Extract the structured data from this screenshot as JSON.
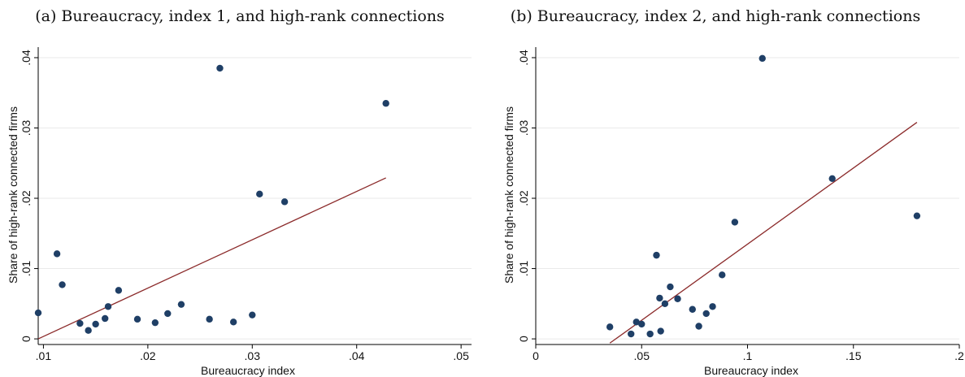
{
  "chart_data": [
    {
      "type": "scatter",
      "title": "(a) Bureaucracy, index 1, and high-rank connections",
      "xlabel": "Bureaucracy index",
      "ylabel": "Share of high-rank connected firms",
      "xlim": [
        0.0095,
        0.051
      ],
      "ylim": [
        -0.0008,
        0.0415
      ],
      "xticks": [
        ".01",
        ".02",
        ".03",
        ".04",
        ".05"
      ],
      "xtick_values": [
        0.01,
        0.02,
        0.03,
        0.04,
        0.05
      ],
      "yticks": [
        "0",
        ".01",
        ".02",
        ".03",
        ".04"
      ],
      "ytick_values": [
        0,
        0.01,
        0.02,
        0.03,
        0.04
      ],
      "grid": "horizontal",
      "series": [
        {
          "points": [
            [
              0.0095,
              0.0037
            ],
            [
              0.0113,
              0.0121
            ],
            [
              0.0118,
              0.0077
            ],
            [
              0.0135,
              0.0022
            ],
            [
              0.0143,
              0.0012
            ],
            [
              0.015,
              0.0021
            ],
            [
              0.0159,
              0.0029
            ],
            [
              0.0162,
              0.0046
            ],
            [
              0.0172,
              0.0069
            ],
            [
              0.019,
              0.0028
            ],
            [
              0.0207,
              0.0023
            ],
            [
              0.0219,
              0.0036
            ],
            [
              0.0232,
              0.0049
            ],
            [
              0.0259,
              0.0028
            ],
            [
              0.0269,
              0.0385
            ],
            [
              0.0282,
              0.0024
            ],
            [
              0.03,
              0.0034
            ],
            [
              0.0307,
              0.0206
            ],
            [
              0.0331,
              0.0195
            ],
            [
              0.0428,
              0.0335
            ]
          ]
        }
      ],
      "fit_line": [
        [
          0.0095,
          0.0
        ],
        [
          0.0428,
          0.0229
        ]
      ],
      "colors": {
        "points": "#1f3f66",
        "fit": "#8b2a2a"
      }
    },
    {
      "type": "scatter",
      "title": "(b) Bureaucracy, index 2, and high-rank connections",
      "xlabel": "Bureaucracy index",
      "ylabel": "Share of high-rank connected firms",
      "xlim": [
        0.0,
        0.2
      ],
      "ylim": [
        -0.0008,
        0.0415
      ],
      "xticks": [
        "0",
        ".05",
        ".1",
        ".15",
        ".2"
      ],
      "xtick_values": [
        0,
        0.05,
        0.1,
        0.15,
        0.2
      ],
      "yticks": [
        "0",
        ".01",
        ".02",
        ".03",
        ".04"
      ],
      "ytick_values": [
        0,
        0.01,
        0.02,
        0.03,
        0.04
      ],
      "grid": "horizontal",
      "series": [
        {
          "points": [
            [
              0.035,
              0.0017
            ],
            [
              0.045,
              0.0007
            ],
            [
              0.0475,
              0.0024
            ],
            [
              0.05,
              0.0021
            ],
            [
              0.054,
              0.0007
            ],
            [
              0.057,
              0.0119
            ],
            [
              0.0585,
              0.0058
            ],
            [
              0.059,
              0.0011
            ],
            [
              0.061,
              0.005
            ],
            [
              0.0635,
              0.0074
            ],
            [
              0.067,
              0.0057
            ],
            [
              0.074,
              0.0042
            ],
            [
              0.077,
              0.0018
            ],
            [
              0.0805,
              0.0036
            ],
            [
              0.0835,
              0.0046
            ],
            [
              0.088,
              0.0091
            ],
            [
              0.094,
              0.0166
            ],
            [
              0.107,
              0.0399
            ],
            [
              0.14,
              0.0228
            ],
            [
              0.18,
              0.0175
            ]
          ]
        }
      ],
      "fit_line": [
        [
          0.035,
          -0.0006
        ],
        [
          0.18,
          0.0308
        ]
      ],
      "colors": {
        "points": "#1f3f66",
        "fit": "#8b2a2a"
      }
    }
  ]
}
